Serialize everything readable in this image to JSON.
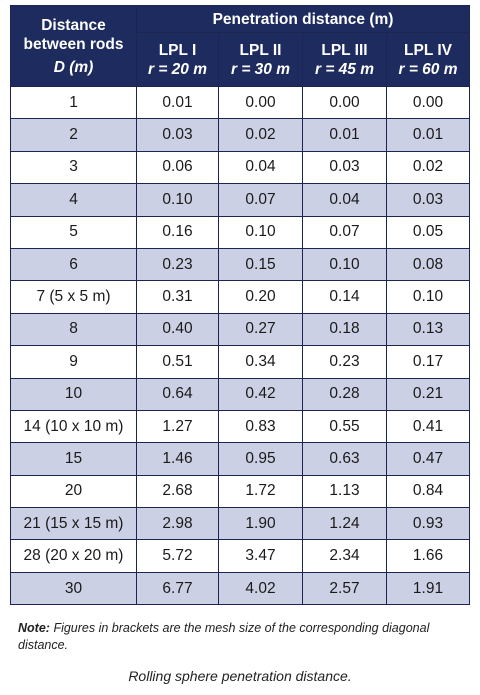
{
  "table": {
    "header": {
      "distance_line1": "Distance",
      "distance_line2": "between rods",
      "distance_line3": "D (m)",
      "penetration": "Penetration distance (m)",
      "lpl": [
        {
          "name": "LPL I",
          "radius": "r = 20 m"
        },
        {
          "name": "LPL II",
          "radius": "r = 30 m"
        },
        {
          "name": "LPL III",
          "radius": "r = 45 m"
        },
        {
          "name": "LPL IV",
          "radius": "r = 60 m"
        }
      ]
    },
    "rows": [
      {
        "d": "1",
        "v": [
          "0.01",
          "0.00",
          "0.00",
          "0.00"
        ]
      },
      {
        "d": "2",
        "v": [
          "0.03",
          "0.02",
          "0.01",
          "0.01"
        ]
      },
      {
        "d": "3",
        "v": [
          "0.06",
          "0.04",
          "0.03",
          "0.02"
        ]
      },
      {
        "d": "4",
        "v": [
          "0.10",
          "0.07",
          "0.04",
          "0.03"
        ]
      },
      {
        "d": "5",
        "v": [
          "0.16",
          "0.10",
          "0.07",
          "0.05"
        ]
      },
      {
        "d": "6",
        "v": [
          "0.23",
          "0.15",
          "0.10",
          "0.08"
        ]
      },
      {
        "d": "7 (5 x 5 m)",
        "v": [
          "0.31",
          "0.20",
          "0.14",
          "0.10"
        ]
      },
      {
        "d": "8",
        "v": [
          "0.40",
          "0.27",
          "0.18",
          "0.13"
        ]
      },
      {
        "d": "9",
        "v": [
          "0.51",
          "0.34",
          "0.23",
          "0.17"
        ]
      },
      {
        "d": "10",
        "v": [
          "0.64",
          "0.42",
          "0.28",
          "0.21"
        ]
      },
      {
        "d": "14 (10 x 10 m)",
        "v": [
          "1.27",
          "0.83",
          "0.55",
          "0.41"
        ]
      },
      {
        "d": "15",
        "v": [
          "1.46",
          "0.95",
          "0.63",
          "0.47"
        ]
      },
      {
        "d": "20",
        "v": [
          "2.68",
          "1.72",
          "1.13",
          "0.84"
        ]
      },
      {
        "d": "21 (15 x 15 m)",
        "v": [
          "2.98",
          "1.90",
          "1.24",
          "0.93"
        ]
      },
      {
        "d": "28 (20 x 20 m)",
        "v": [
          "5.72",
          "3.47",
          "2.34",
          "1.66"
        ]
      },
      {
        "d": "30",
        "v": [
          "6.77",
          "4.02",
          "2.57",
          "1.91"
        ]
      }
    ]
  },
  "note": {
    "label": "Note:",
    "text": "Figures in brackets are the mesh size of the corresponding diagonal distance."
  },
  "caption": "Rolling sphere penetration distance.",
  "colors": {
    "header_bg": "#1d2b5e",
    "stripe": "#ccd0e4",
    "border": "#1c2550"
  }
}
